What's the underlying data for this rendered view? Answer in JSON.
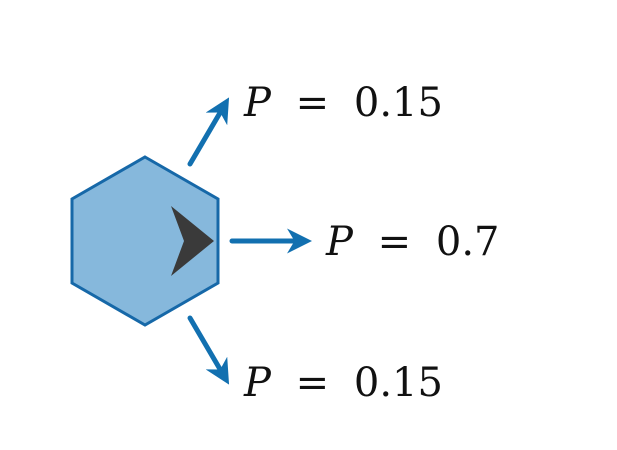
{
  "colors": {
    "hex_fill": "#86b8dc",
    "hex_stroke": "#1668a8",
    "arrow": "#1270b0",
    "pointer": "#3a3a3a",
    "text": "#111111"
  },
  "center": {
    "icon": "chevron-right-icon"
  },
  "outcomes": [
    {
      "id": "up",
      "variable": "P",
      "equals": "=",
      "value": "0.15"
    },
    {
      "id": "right",
      "variable": "P",
      "equals": "=",
      "value": "0.7"
    },
    {
      "id": "down",
      "variable": "P",
      "equals": "=",
      "value": "0.15"
    }
  ]
}
